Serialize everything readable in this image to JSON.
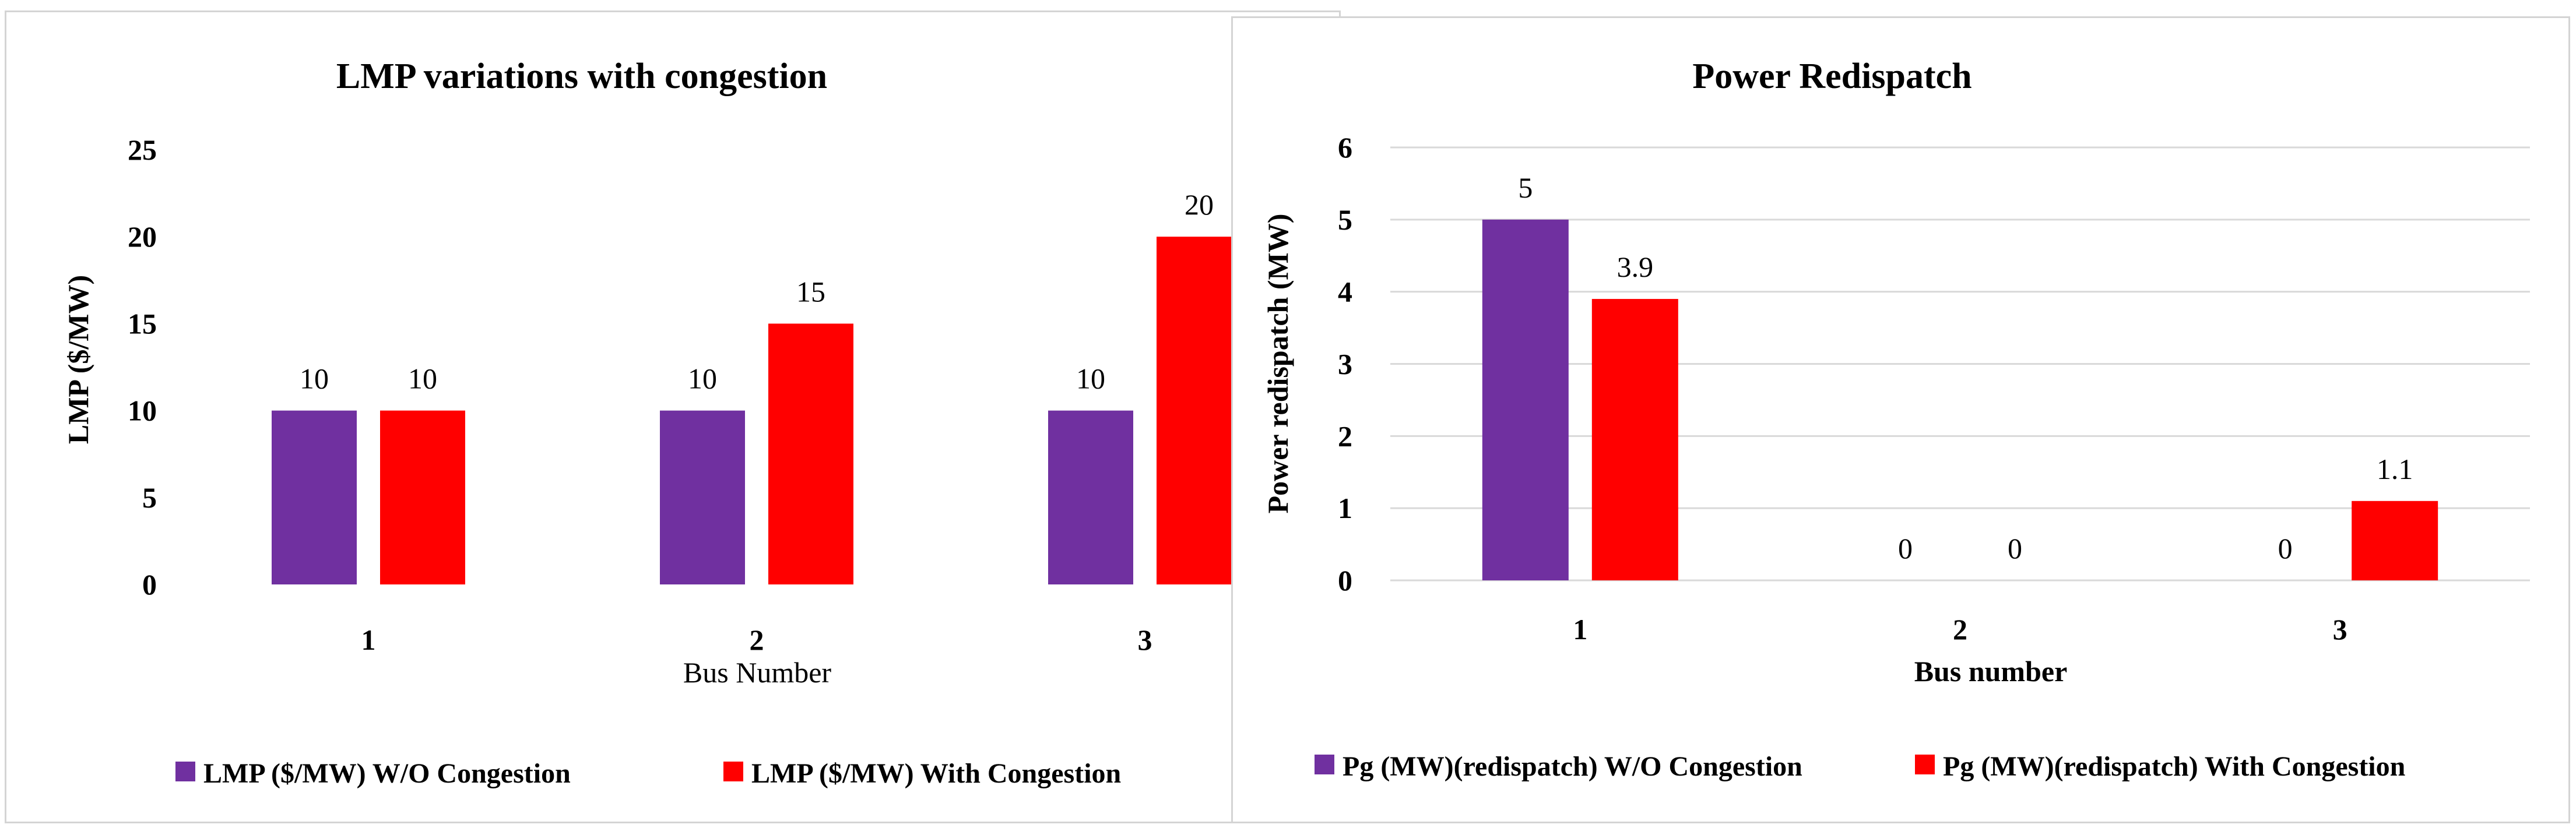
{
  "chart_data": [
    {
      "type": "bar",
      "title": "LMP variations with congestion",
      "xlabel": "Bus Number",
      "ylabel": "LMP  ($/MW)",
      "ylim": [
        0,
        25
      ],
      "yticks": [
        0,
        5,
        10,
        15,
        20,
        25
      ],
      "categories": [
        "1",
        "2",
        "3"
      ],
      "grid": false,
      "legend_position": "bottom",
      "series": [
        {
          "name": "LMP ($/MW)  W/O Congestion",
          "color": "#7030a0",
          "values": [
            10,
            10,
            10
          ],
          "labels": [
            "10",
            "10",
            "10"
          ]
        },
        {
          "name": "LMP ($/MW)  With Congestion",
          "color": "#ff0000",
          "values": [
            10,
            15,
            20
          ],
          "labels": [
            "10",
            "15",
            "20"
          ]
        }
      ]
    },
    {
      "type": "bar",
      "title": "Power Redispatch",
      "xlabel": "Bus number",
      "ylabel": "Power  redispatch  (MW)",
      "ylim": [
        0,
        6
      ],
      "yticks": [
        0,
        1,
        2,
        3,
        4,
        5,
        6
      ],
      "categories": [
        "1",
        "2",
        "3"
      ],
      "grid": true,
      "legend_position": "bottom",
      "series": [
        {
          "name": "Pg (MW)(redispatch) W/O Congestion",
          "color": "#7030a0",
          "values": [
            5,
            0,
            0
          ],
          "labels": [
            "5",
            "0",
            "0"
          ]
        },
        {
          "name": "Pg (MW)(redispatch) With Congestion",
          "color": "#ff0000",
          "values": [
            3.9,
            0,
            1.1
          ],
          "labels": [
            "3.9",
            "0",
            "1.1"
          ]
        }
      ]
    }
  ]
}
